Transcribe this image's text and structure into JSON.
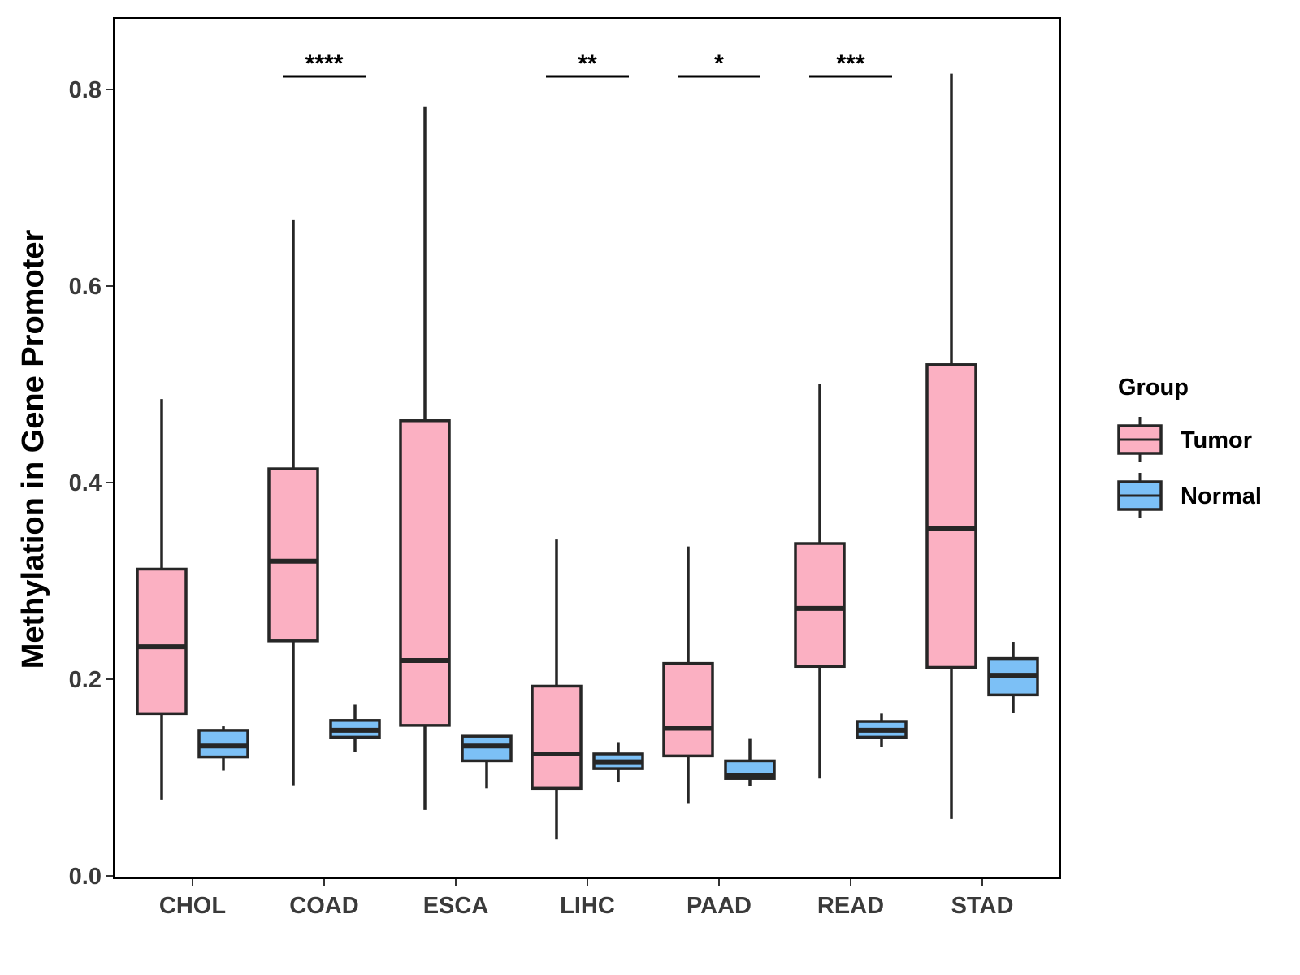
{
  "chart_data": {
    "type": "boxplot",
    "title": "",
    "xlabel": "",
    "ylabel": "Methylation in Gene Promoter",
    "ylim": [
      0.0,
      0.87
    ],
    "y_ticks": [
      "0.0",
      "0.2",
      "0.4",
      "0.6",
      "0.8"
    ],
    "grid": false,
    "legend_position": "right",
    "categories": [
      "CHOL",
      "COAD",
      "ESCA",
      "LIHC",
      "PAAD",
      "READ",
      "STAD"
    ],
    "legend": {
      "title": "Group",
      "entries": [
        {
          "name": "Tumor",
          "color": "#FBB0C2"
        },
        {
          "name": "Normal",
          "color": "#7CC0F6"
        }
      ]
    },
    "series": [
      {
        "name": "Tumor",
        "color": "#FBB0C2",
        "boxes": [
          {
            "category": "CHOL",
            "min": 0.077,
            "q1": 0.165,
            "median": 0.233,
            "q3": 0.312,
            "max": 0.485
          },
          {
            "category": "COAD",
            "min": 0.092,
            "q1": 0.239,
            "median": 0.32,
            "q3": 0.414,
            "max": 0.667
          },
          {
            "category": "ESCA",
            "min": 0.067,
            "q1": 0.153,
            "median": 0.219,
            "q3": 0.463,
            "max": 0.782
          },
          {
            "category": "LIHC",
            "min": 0.037,
            "q1": 0.089,
            "median": 0.124,
            "q3": 0.193,
            "max": 0.342
          },
          {
            "category": "PAAD",
            "min": 0.074,
            "q1": 0.122,
            "median": 0.15,
            "q3": 0.216,
            "max": 0.335
          },
          {
            "category": "READ",
            "min": 0.099,
            "q1": 0.213,
            "median": 0.272,
            "q3": 0.338,
            "max": 0.5
          },
          {
            "category": "STAD",
            "min": 0.058,
            "q1": 0.212,
            "median": 0.353,
            "q3": 0.52,
            "max": 0.816
          }
        ]
      },
      {
        "name": "Normal",
        "color": "#7CC0F6",
        "boxes": [
          {
            "category": "CHOL",
            "min": 0.107,
            "q1": 0.121,
            "median": 0.132,
            "q3": 0.148,
            "max": 0.152
          },
          {
            "category": "COAD",
            "min": 0.126,
            "q1": 0.141,
            "median": 0.148,
            "q3": 0.158,
            "max": 0.174
          },
          {
            "category": "ESCA",
            "min": 0.089,
            "q1": 0.117,
            "median": 0.132,
            "q3": 0.142,
            "max": 0.142
          },
          {
            "category": "LIHC",
            "min": 0.095,
            "q1": 0.109,
            "median": 0.116,
            "q3": 0.124,
            "max": 0.136
          },
          {
            "category": "PAAD",
            "min": 0.091,
            "q1": 0.099,
            "median": 0.102,
            "q3": 0.117,
            "max": 0.14
          },
          {
            "category": "READ",
            "min": 0.131,
            "q1": 0.141,
            "median": 0.148,
            "q3": 0.157,
            "max": 0.165
          },
          {
            "category": "STAD",
            "min": 0.166,
            "q1": 0.184,
            "median": 0.204,
            "q3": 0.221,
            "max": 0.238
          }
        ]
      }
    ],
    "annotations": [
      {
        "category": "COAD",
        "label": "****"
      },
      {
        "category": "LIHC",
        "label": "**"
      },
      {
        "category": "PAAD",
        "label": "*"
      },
      {
        "category": "READ",
        "label": "***"
      }
    ]
  }
}
